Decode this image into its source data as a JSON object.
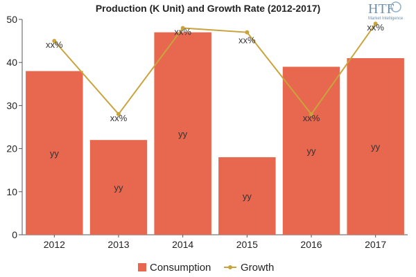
{
  "chart_data": {
    "type": "bar",
    "title": "Production (K Unit) and Growth Rate (2012-2017)",
    "categories": [
      "2012",
      "2013",
      "2014",
      "2015",
      "2016",
      "2017"
    ],
    "ylim": [
      0,
      50
    ],
    "yticks": [
      0,
      10,
      20,
      30,
      40,
      50
    ],
    "grid": false,
    "legend_position": "bottom",
    "series": [
      {
        "name": "Consumption",
        "type": "bar",
        "color": "#e8684f",
        "values": [
          38,
          22,
          47,
          18,
          39,
          41
        ],
        "labels": [
          "yy",
          "yy",
          "yy",
          "yy",
          "yy",
          "yy"
        ]
      },
      {
        "name": "Growth",
        "type": "line",
        "color": "#c9a33c",
        "values": [
          45,
          28,
          48,
          47,
          28,
          49
        ],
        "labels": [
          "xx%",
          "xx%",
          "xx%",
          "xx%",
          "xx%",
          "xx%"
        ]
      }
    ]
  },
  "logo": {
    "brand": "HTF",
    "tagline": "Market Intelligence"
  }
}
